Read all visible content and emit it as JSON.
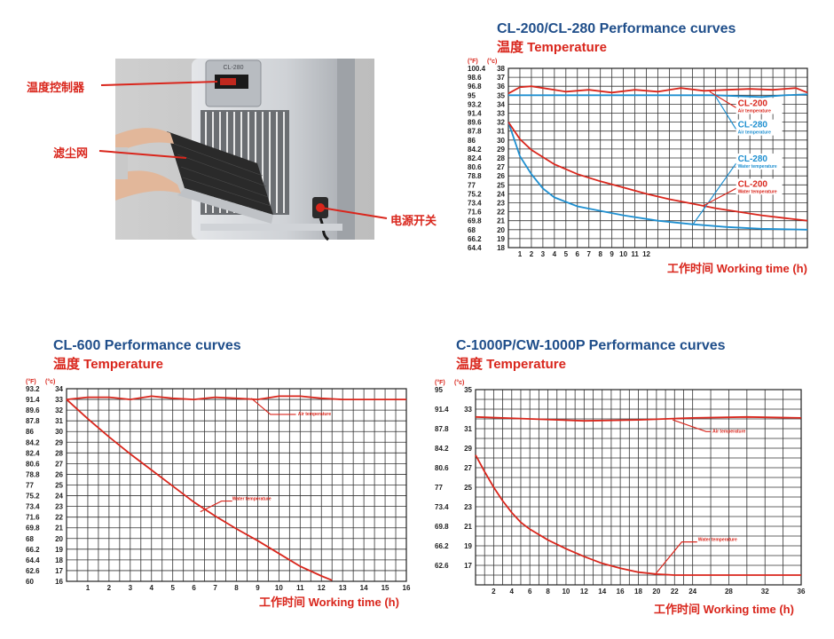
{
  "product": {
    "callouts": {
      "controller": "温度控制器",
      "filter": "滤尘网",
      "power_switch": "电源开关"
    },
    "device_label": "CL-280",
    "colors": {
      "callout_line": "#d9261c",
      "device_body": "#c9ccd0"
    }
  },
  "chart_data": [
    {
      "type": "line",
      "title": "CL-200/CL-280 Performance curves",
      "subtitle": "温度 Temperature",
      "xlabel": "工作时间 Working time (h)",
      "ylabel_units": [
        "(°F)",
        "(°c)"
      ],
      "xticks": [
        "1",
        "2",
        "3",
        "4",
        "5",
        "6",
        "7",
        "8",
        "9",
        "10",
        "11",
        "12"
      ],
      "xlim": [
        0,
        26
      ],
      "yticks_c": [
        "38",
        "37",
        "36",
        "35",
        "34",
        "33",
        "32",
        "31",
        "30",
        "29",
        "28",
        "27",
        "26",
        "25",
        "24",
        "23",
        "22",
        "21",
        "20",
        "19",
        "18"
      ],
      "yticks_f": [
        "100.4",
        "98.6",
        "96.8",
        "95",
        "93.2",
        "91.4",
        "89.6",
        "87.8",
        "86",
        "84.2",
        "82.4",
        "80.6",
        "78.8",
        "77",
        "75.2",
        "73.4",
        "71.6",
        "69.8",
        "68",
        "66.2",
        "64.4"
      ],
      "ylim": [
        18,
        38
      ],
      "grid": true,
      "colors": {
        "CL-200": "#d9261c",
        "CL-280": "#1e8fd0"
      },
      "series": [
        {
          "name": "CL-200",
          "kind": "Air temperature",
          "label": "Air temperature",
          "x": [
            0,
            1,
            2,
            3,
            5,
            7,
            9,
            11,
            13,
            15,
            17,
            19,
            21,
            23,
            25,
            26
          ],
          "y": [
            35.2,
            35.9,
            36,
            35.8,
            35.4,
            35.6,
            35.3,
            35.6,
            35.4,
            35.8,
            35.5,
            35.6,
            35.7,
            35.6,
            35.8,
            35.3
          ]
        },
        {
          "name": "CL-280",
          "kind": "Air temperature",
          "label": "Air temperature",
          "x": [
            0,
            5,
            10,
            15,
            18,
            20,
            22,
            24,
            26
          ],
          "y": [
            35.0,
            35.0,
            35.0,
            35.0,
            35.0,
            34.9,
            34.8,
            35.0,
            35.1
          ]
        },
        {
          "name": "CL-280",
          "kind": "Water temperature",
          "label": "Water temperature",
          "x": [
            0,
            1,
            2,
            3,
            4,
            6,
            8,
            10,
            13,
            16,
            19,
            22,
            26
          ],
          "y": [
            32,
            28.2,
            26.2,
            24.6,
            23.6,
            22.6,
            22.1,
            21.6,
            21.0,
            20.6,
            20.3,
            20.1,
            20.0
          ]
        },
        {
          "name": "CL-200",
          "kind": "Water temperature",
          "label": "Water temperature",
          "x": [
            0,
            1,
            2,
            4,
            6,
            8,
            10,
            12,
            14,
            16,
            18,
            20,
            22,
            24,
            26
          ],
          "y": [
            32,
            30.1,
            28.9,
            27.3,
            26.2,
            25.4,
            24.7,
            24.0,
            23.4,
            22.9,
            22.4,
            22.0,
            21.6,
            21.3,
            21.0
          ]
        }
      ],
      "annotations": [
        {
          "title": "CL-200",
          "label": "Air temperature",
          "color": "#d9261c"
        },
        {
          "title": "CL-280",
          "label": "Air temperature",
          "color": "#1e8fd0"
        },
        {
          "title": "CL-280",
          "label": "Water temperature",
          "color": "#1e8fd0"
        },
        {
          "title": "CL-200",
          "label": "Water temperature",
          "color": "#d9261c"
        }
      ]
    },
    {
      "type": "line",
      "title": "CL-600 Performance curves",
      "subtitle": "温度 Temperature",
      "xlabel": "工作时间 Working time (h)",
      "ylabel_units": [
        "(°F)",
        "(°c)"
      ],
      "xticks": [
        "1",
        "2",
        "3",
        "4",
        "5",
        "6",
        "7",
        "8",
        "9",
        "10",
        "11",
        "12",
        "13",
        "14",
        "15",
        "16"
      ],
      "xlim": [
        0,
        16
      ],
      "yticks_c": [
        "34",
        "33",
        "32",
        "31",
        "30",
        "29",
        "28",
        "27",
        "26",
        "25",
        "24",
        "23",
        "22",
        "21",
        "20",
        "19",
        "18",
        "17",
        "16"
      ],
      "yticks_f": [
        "93.2",
        "91.4",
        "89.6",
        "87.8",
        "86",
        "84.2",
        "82.4",
        "80.6",
        "78.8",
        "77",
        "75.2",
        "73.4",
        "71.6",
        "69.8",
        "68",
        "66.2",
        "64.4",
        "62.6",
        "60"
      ],
      "ylim": [
        16,
        34
      ],
      "grid": true,
      "colors": {
        "line": "#d9261c"
      },
      "series": [
        {
          "name": "Air temperature",
          "label": "Air temperature",
          "x": [
            0,
            1,
            2,
            3,
            4,
            5,
            6,
            7,
            8,
            9,
            10,
            11,
            12,
            13,
            14,
            15,
            16
          ],
          "y": [
            33.0,
            33.2,
            33.2,
            33.0,
            33.3,
            33.1,
            33.0,
            33.2,
            33.1,
            33.0,
            33.3,
            33.3,
            33.1,
            33.0,
            33.0,
            33.0,
            33.0
          ]
        },
        {
          "name": "Water temperature",
          "label": "Water temperature",
          "x": [
            0,
            1,
            2,
            3,
            4,
            5,
            6,
            7,
            8,
            9,
            10,
            11,
            12,
            12.5
          ],
          "y": [
            33,
            31.2,
            29.5,
            27.9,
            26.4,
            24.9,
            23.4,
            22.1,
            20.9,
            19.8,
            18.6,
            17.4,
            16.5,
            16.1
          ]
        }
      ]
    },
    {
      "type": "line",
      "title": "C-1000P/CW-1000P Performance curves",
      "subtitle": "温度 Temperature",
      "xlabel": "工作时间 Working time (h)",
      "ylabel_units": [
        "(°F)",
        "(°c)"
      ],
      "xticks": [
        "2",
        "4",
        "6",
        "8",
        "10",
        "12",
        "14",
        "16",
        "18",
        "20",
        "22",
        "24",
        "28",
        "32",
        "36"
      ],
      "xlim": [
        0,
        36
      ],
      "yticks_c": [
        "35",
        "33",
        "31",
        "29",
        "27",
        "25",
        "23",
        "21",
        "19",
        "17"
      ],
      "yticks_f": [
        "95",
        "91.4",
        "87.8",
        "84.2",
        "80.6",
        "77",
        "73.4",
        "69.8",
        "66.2",
        "62.6"
      ],
      "ylim": [
        15,
        35
      ],
      "grid": true,
      "colors": {
        "line": "#d9261c"
      },
      "series": [
        {
          "name": "Air temperature",
          "label": "Air temperature",
          "x": [
            0,
            6,
            12,
            18,
            24,
            30,
            36
          ],
          "y": [
            32.2,
            32.0,
            31.8,
            31.9,
            32.1,
            32.2,
            32.1
          ]
        },
        {
          "name": "Water temperature",
          "label": "Water temperature",
          "x": [
            0,
            1,
            2,
            3,
            4,
            5,
            6,
            8,
            10,
            12,
            14,
            16,
            18,
            20,
            22,
            24,
            28,
            32,
            36
          ],
          "y": [
            28.3,
            26.6,
            25.0,
            23.6,
            22.4,
            21.4,
            20.7,
            19.6,
            18.7,
            17.9,
            17.2,
            16.7,
            16.3,
            16.1,
            16.0,
            16.0,
            16.0,
            16.0,
            16.0
          ]
        }
      ]
    }
  ]
}
